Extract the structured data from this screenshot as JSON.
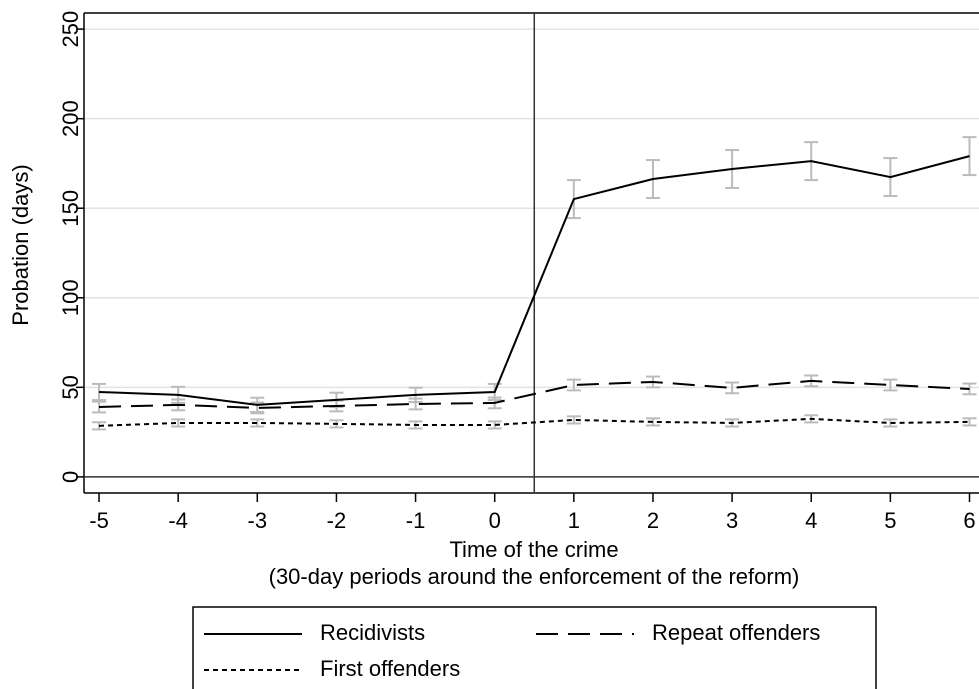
{
  "chart_data": {
    "type": "line",
    "xlabel": [
      "Time of the crime",
      "(30-day periods around the enforcement of the reform)"
    ],
    "ylabel": "Probation (days)",
    "x": [
      -5,
      -4,
      -3,
      -2,
      -1,
      0,
      1,
      2,
      3,
      4,
      5,
      6
    ],
    "xlim": [
      -5.19,
      6.12
    ],
    "xticks": [
      -5,
      -4,
      -3,
      -2,
      -1,
      0,
      1,
      2,
      3,
      4,
      5,
      6
    ],
    "ylim": [
      -9,
      259
    ],
    "yticks": [
      0,
      50,
      100,
      150,
      200,
      250
    ],
    "grid": true,
    "hline": 0,
    "vline": 0.5,
    "legend": "bottom",
    "error_color": "#bbbbbb",
    "series": [
      {
        "name": "Recidivists",
        "color": "#000000",
        "dash": "solid",
        "values": [
          47.4,
          45.8,
          40.2,
          43,
          45.8,
          47.4,
          155.1,
          166.3,
          171.9,
          176.3,
          167.4,
          179.1
        ],
        "errors": [
          4.5,
          4.5,
          4,
          4,
          4,
          4.5,
          10.6,
          10.6,
          10.6,
          10.6,
          10.6,
          10.6
        ]
      },
      {
        "name": "Repeat offenders",
        "color": "#000000",
        "dash": "longdash",
        "values": [
          39,
          40.2,
          38.5,
          39.6,
          40.7,
          41.3,
          51.3,
          53,
          49.7,
          53.6,
          51.3,
          49.1
        ],
        "errors": [
          3,
          3,
          3,
          3,
          3,
          3,
          3,
          3,
          3,
          3,
          3,
          3
        ]
      },
      {
        "name": "First offenders",
        "color": "#000000",
        "dash": "dotted",
        "values": [
          28.5,
          30.1,
          30.1,
          29.6,
          29,
          29,
          31.8,
          30.7,
          30.1,
          32.4,
          30.1,
          30.7
        ],
        "errors": [
          2,
          2,
          2,
          2,
          2,
          2,
          2,
          2,
          2,
          2,
          2,
          2
        ]
      }
    ]
  }
}
